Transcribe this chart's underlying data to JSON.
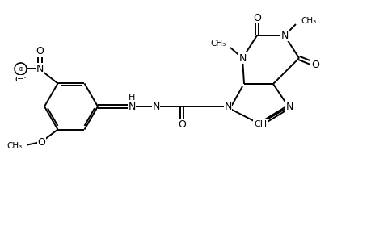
{
  "bg": "#ffffff",
  "lc": "#000000",
  "lw": 1.4,
  "fs": 8.5,
  "fig_w": 4.6,
  "fig_h": 3.0,
  "dpi": 100,
  "xlim": [
    0,
    460
  ],
  "ylim": [
    0,
    300
  ]
}
